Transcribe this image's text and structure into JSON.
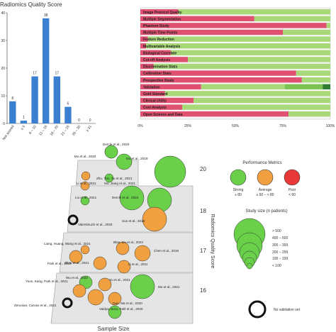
{
  "chart_data": [
    {
      "type": "bar",
      "title": "Radiomics Quality Score",
      "categories": [
        "Not scored",
        "≤ 5",
        "6 – 10",
        "11 – 15",
        "16 – 20",
        "21 – 25",
        "26 – 30",
        "≥ 31"
      ],
      "values": [
        8,
        1,
        17,
        38,
        17,
        6,
        0,
        0
      ],
      "ylim": [
        0,
        40
      ],
      "yticks": [
        0,
        10,
        20,
        30,
        40
      ],
      "color": "#3a7fd0"
    },
    {
      "type": "bar",
      "orientation": "horizontal",
      "stacked": true,
      "categories": [
        "Image Protocol Quality",
        "Multiple Segmentation",
        "Phantom Study",
        "Multiple Time Points",
        "Feature Reduction",
        "Multivariable Analysis",
        "Biological Correlate",
        "Cut-off Analysis",
        "Discrimination Stats",
        "Calibration Stats",
        "Prospective Study",
        "Validation",
        "Gold Standard",
        "Clinical Utility",
        "Cost Analysis",
        "Open Science and Data"
      ],
      "series": [
        {
          "color": "#e05070",
          "values": [
            20,
            60,
            98,
            75,
            4,
            3,
            16,
            25,
            7,
            82,
            85,
            32,
            13,
            28,
            22,
            78
          ]
        },
        {
          "color": "#a8d878",
          "values": [
            80,
            40,
            2,
            25,
            96,
            97,
            84,
            75,
            93,
            18,
            15,
            44,
            87,
            72,
            78,
            22
          ]
        },
        {
          "color": "#7cc250",
          "values": [
            0,
            0,
            0,
            0,
            0,
            0,
            0,
            0,
            0,
            0,
            0,
            20,
            0,
            0,
            0,
            0
          ]
        },
        {
          "color": "#2e7d32",
          "values": [
            0,
            0,
            0,
            0,
            0,
            0,
            0,
            0,
            0,
            0,
            0,
            4,
            0,
            0,
            0,
            0
          ]
        }
      ],
      "xticks": [
        "0%",
        "25%",
        "50%",
        "75%",
        "100%"
      ],
      "xlim": [
        0,
        100
      ]
    },
    {
      "type": "scatter",
      "xlabel": "Sample Size",
      "ylabel": "Radiomics Quality Score",
      "tiers": [
        "16",
        "17",
        "18",
        "20"
      ],
      "points": [
        {
          "label": "Dercle et al., 2020",
          "tier": 20,
          "size": 2,
          "color": "green"
        },
        {
          "label": "Mu et al., 2020",
          "tier": 20,
          "size": 2,
          "color": "green"
        },
        {
          "label": "Mu et al., 2019",
          "tier": 20,
          "size": 3,
          "color": "green"
        },
        {
          "label": "Zhu, Yao, Xu et al., 2021",
          "tier": 20,
          "size": 1,
          "color": "orange"
        },
        {
          "label": "Li et al., 2021",
          "tier": 20,
          "size": 1,
          "color": "orange"
        },
        {
          "label": "Mu, Jiang et al., 2021",
          "tier": 20,
          "size": 1,
          "color": "green"
        },
        {
          "label": "",
          "tier": 20,
          "size": 5,
          "color": "green"
        },
        {
          "label": "Liu et al., 2021",
          "tier": 18,
          "size": 1,
          "color": "green"
        },
        {
          "label": "Dercle et al., 2022",
          "tier": 18,
          "size": 4,
          "color": "green"
        },
        {
          "label": "Sun et al., 2018",
          "tier": 18,
          "size": 4,
          "color": "green"
        },
        {
          "label": "Valentinuzzi et al., 2020",
          "tier": 18,
          "size": 1,
          "color": "none"
        },
        {
          "label": "",
          "tier": 18,
          "size": 4,
          "color": "orange"
        },
        {
          "label": "Liang, Huang, Wang et al., 2021",
          "tier": 17,
          "size": 1,
          "color": "orange"
        },
        {
          "label": "Blan, Liu et al., 2022",
          "tier": 17,
          "size": 2,
          "color": "orange"
        },
        {
          "label": "Chen et al., 2019",
          "tier": 17,
          "size": 3,
          "color": "orange"
        },
        {
          "label": "Park et al., 2020",
          "tier": 17,
          "size": 2,
          "color": "orange"
        },
        {
          "label": "Zhou et al., 2021",
          "tier": 17,
          "size": 2,
          "color": "orange"
        },
        {
          "label": "Li et al., 2021",
          "tier": 17,
          "size": 2,
          "color": "orange"
        },
        {
          "label": "Wu et al., 2022",
          "tier": 16,
          "size": 2,
          "color": "green"
        },
        {
          "label": "Xu et al., 2021",
          "tier": 16,
          "size": 2,
          "color": "orange"
        },
        {
          "label": "Yoon, Kang, Park et al., 2021",
          "tier": 16,
          "size": 2,
          "color": "orange"
        },
        {
          "label": "Mu et al., 2021",
          "tier": 16,
          "size": 4,
          "color": "green"
        },
        {
          "label": "Zerunian, Caruso et al., 2021",
          "tier": 16,
          "size": 1,
          "color": "none"
        },
        {
          "label": "Gao, Ma et al., 2020",
          "tier": 16,
          "size": 2,
          "color": "orange"
        },
        {
          "label": "Vaidya, Bera, Patil et al., 2020",
          "tier": 16,
          "size": 2,
          "color": "green"
        },
        {
          "label": "",
          "tier": 16,
          "size": 3,
          "color": "orange"
        }
      ]
    }
  ],
  "legend": {
    "performance_title": "Performance Metrics",
    "items": [
      {
        "name": "Strong",
        "range": "≥ 80",
        "color": "#6ad04a"
      },
      {
        "name": "Average",
        "range": "≥ 60 – < 80",
        "color": "#f0a040"
      },
      {
        "name": "Poor",
        "range": "< 60",
        "color": "#e83838"
      }
    ],
    "size_title": "Study size (n patients)",
    "sizes": [
      "> 500",
      "400 – 500",
      "300 – 399",
      "200 – 299",
      "100 – 199",
      "< 100"
    ],
    "no_validation": "No validation set"
  }
}
